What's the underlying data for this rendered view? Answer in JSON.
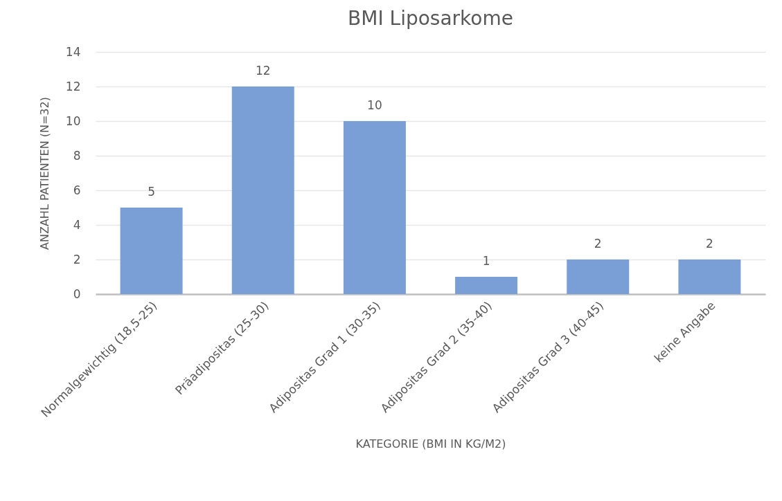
{
  "chart_data": {
    "type": "bar",
    "title": "BMI Liposarkome",
    "xlabel": "KATEGORIE (BMI IN KG/M2)",
    "ylabel": "ANZAHL PATIENTEN (N=32)",
    "categories": [
      "Normalgewichtig (18,5-25)",
      "Präadipositas (25-30)",
      "Adipositas Grad 1 (30-35)",
      "Adipositas Grad 2 (35-40)",
      "Adipositas Grad 3 (40-45)",
      "keine Angabe"
    ],
    "values": [
      5,
      12,
      10,
      1,
      2,
      2
    ],
    "color": "#7a9fd6",
    "ylim": [
      0,
      14
    ],
    "yticks": [
      0,
      2,
      4,
      6,
      8,
      10,
      12,
      14
    ],
    "grid": "y",
    "data_labels": true
  }
}
